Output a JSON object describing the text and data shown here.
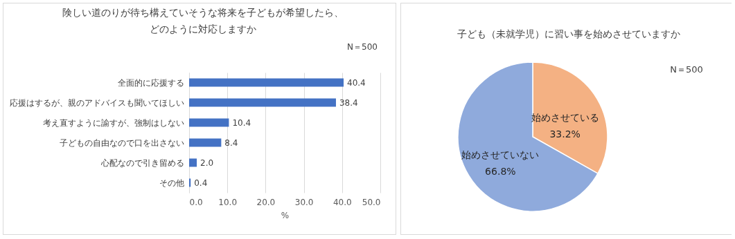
{
  "chart_data": [
    {
      "type": "bar",
      "orientation": "horizontal",
      "title": "険しい道のりが待ち構えていそうな将来を子どもが希望したら、どのように対応しますか",
      "annotations": [
        "N＝500"
      ],
      "xlabel": "%",
      "categories": [
        "全面的に応援する",
        "応援はするが、親のアドバイスも聞いてほしい",
        "考え直すように諭すが、強制はしない",
        "子どもの自由なので口を出さない",
        "心配なので引き留める",
        "その他"
      ],
      "values": [
        40.4,
        38.4,
        10.4,
        8.4,
        2.0,
        0.4
      ],
      "value_labels": [
        "40.4",
        "38.4",
        "10.4",
        "8.4",
        "2.0",
        "0.4"
      ],
      "color": "#4472c4",
      "xlim": [
        0,
        50
      ],
      "xticks": [
        {
          "value": 0,
          "label": "0.0"
        },
        {
          "value": 10,
          "label": "10.0"
        },
        {
          "value": 20,
          "label": "20.0"
        },
        {
          "value": 30,
          "label": "30.0"
        },
        {
          "value": 40,
          "label": "40.0"
        },
        {
          "value": 50,
          "label": "50.0"
        }
      ],
      "grid": "x"
    },
    {
      "type": "pie",
      "title": "子ども（未就学児）に習い事を始めさせていますか",
      "annotations": [
        "N＝500"
      ],
      "categories": [
        "始めさせている",
        "始めさせていない"
      ],
      "values": [
        33.2,
        66.8
      ],
      "value_labels": [
        "33.2%",
        "66.8%"
      ],
      "colors": [
        "#f4b183",
        "#8faadc"
      ]
    }
  ]
}
